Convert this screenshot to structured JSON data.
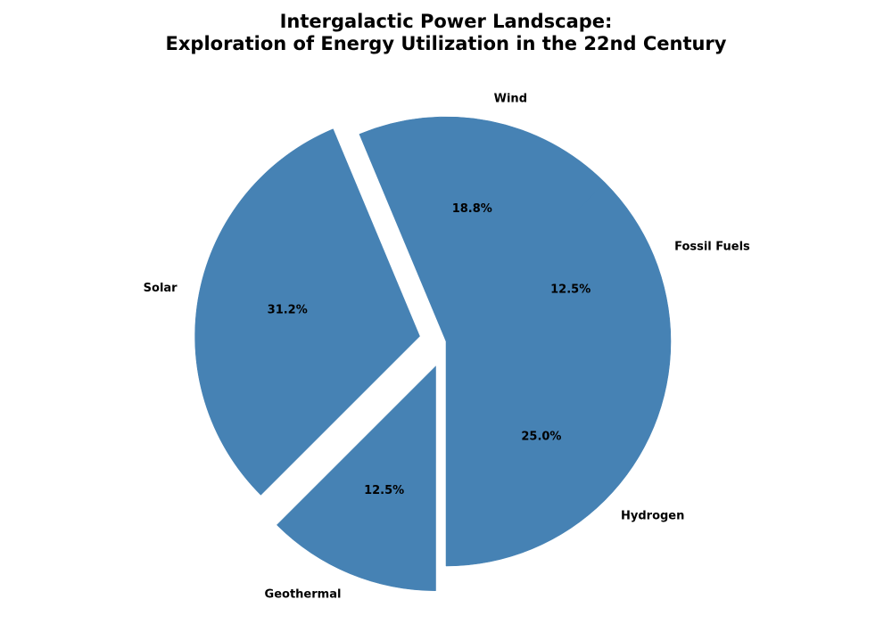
{
  "chart_data": {
    "type": "pie",
    "title_line1": "Intergalactic Power Landscape:",
    "title_line2": "Exploration of Energy Utilization in the 22nd Century",
    "slices": [
      {
        "label": "Fossil Fuels",
        "value": 12.5,
        "pct_text": "12.5%",
        "exploded": false
      },
      {
        "label": "Hydrogen",
        "value": 25.0,
        "pct_text": "25.0%",
        "exploded": false
      },
      {
        "label": "Geothermal",
        "value": 12.5,
        "pct_text": "12.5%",
        "exploded": true
      },
      {
        "label": "Solar",
        "value": 31.2,
        "pct_text": "31.2%",
        "exploded": true
      },
      {
        "label": "Wind",
        "value": 18.8,
        "pct_text": "18.8%",
        "exploded": false
      }
    ],
    "start_angle_deg": 45,
    "direction": "clockwise",
    "color": "#4682b4",
    "legend": "none"
  }
}
